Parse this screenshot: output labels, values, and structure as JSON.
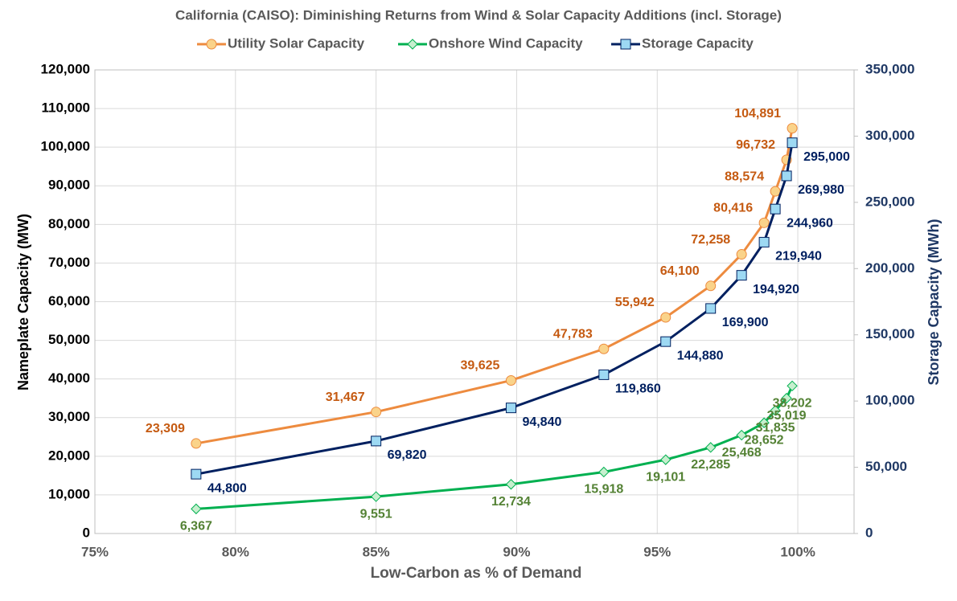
{
  "chart_data": {
    "type": "line",
    "title": "California (CAISO): Diminishing Returns from Wind & Solar Capacity Additions (incl. Storage)",
    "x_label": "Low-Carbon as % of Demand",
    "y_label": "Nameplate Capacity (MW)",
    "y2_label": "Storage Capacity (MWh)",
    "x": [
      78.6,
      85.0,
      89.8,
      93.1,
      95.3,
      96.9,
      98.0,
      98.8,
      99.2,
      99.6,
      99.8
    ],
    "xlim": [
      75,
      102
    ],
    "xticks": [
      {
        "value": 75,
        "label": "75%"
      },
      {
        "value": 80,
        "label": "80%"
      },
      {
        "value": 85,
        "label": "85%"
      },
      {
        "value": 90,
        "label": "90%"
      },
      {
        "value": 95,
        "label": "95%"
      },
      {
        "value": 100,
        "label": "100%"
      }
    ],
    "ylim": [
      0,
      120000
    ],
    "yticks": [
      0,
      {
        "value": 10000,
        "label": "10,000"
      },
      {
        "value": 20000,
        "label": "20,000"
      },
      {
        "value": 30000,
        "label": "30,000"
      },
      {
        "value": 40000,
        "label": "40,000"
      },
      {
        "value": 50000,
        "label": "50,000"
      },
      {
        "value": 60000,
        "label": "60,000"
      },
      {
        "value": 70000,
        "label": "70,000"
      },
      {
        "value": 80000,
        "label": "80,000"
      },
      {
        "value": 90000,
        "label": "90,000"
      },
      {
        "value": 100000,
        "label": "100,000"
      },
      {
        "value": 110000,
        "label": "110,000"
      },
      {
        "value": 120000,
        "label": "120,000"
      }
    ],
    "y2lim": [
      0,
      350000
    ],
    "y2ticks": [
      0,
      {
        "value": 50000,
        "label": "50,000"
      },
      {
        "value": 100000,
        "label": "100,000"
      },
      {
        "value": 150000,
        "label": "150,000"
      },
      {
        "value": 200000,
        "label": "200,000"
      },
      {
        "value": 250000,
        "label": "250,000"
      },
      {
        "value": 300000,
        "label": "300,000"
      },
      {
        "value": 350000,
        "label": "350,000"
      }
    ],
    "grid": true,
    "legend": "top",
    "series": [
      {
        "name": "Utility Solar Capacity",
        "color": "#ED8B3F",
        "marker_fill": "#FAD38A",
        "marker": "circle",
        "label_color": "#C55A11",
        "label_position": "above-left",
        "values": [
          23309,
          31467,
          39625,
          47783,
          55942,
          64100,
          72258,
          80416,
          88574,
          96732,
          104891
        ],
        "value_labels": [
          "23,309",
          "31,467",
          "39,625",
          "47,783",
          "55,942",
          "64,100",
          "72,258",
          "80,416",
          "88,574",
          "96,732",
          "104,891"
        ]
      },
      {
        "name": "Onshore Wind Capacity",
        "color": "#00B050",
        "marker_fill": "#C6EFCE",
        "marker": "diamond",
        "label_color": "#548235",
        "label_position": "below",
        "values": [
          6367,
          9551,
          12734,
          15918,
          19101,
          22285,
          25468,
          28652,
          31835,
          35019,
          38202
        ],
        "value_labels": [
          "6,367",
          "9,551",
          "12,734",
          "15,918",
          "19,101",
          "22,285",
          "25,468",
          "28,652",
          "31,835",
          "35,019",
          "38,202"
        ]
      },
      {
        "name": "Storage Capacity",
        "color": "#002060",
        "marker_fill": "#9DD9F3",
        "marker": "square",
        "label_color": "#002060",
        "label_position": "below-right",
        "axis": "y2",
        "values": [
          44800,
          69820,
          94840,
          119860,
          144880,
          169900,
          194920,
          219940,
          244960,
          269980,
          295000
        ],
        "value_labels": [
          "44,800",
          "69,820",
          "94,840",
          "119,860",
          "144,880",
          "169,900",
          "194,920",
          "219,940",
          "244,960",
          "269,980",
          "295,000"
        ]
      }
    ]
  }
}
